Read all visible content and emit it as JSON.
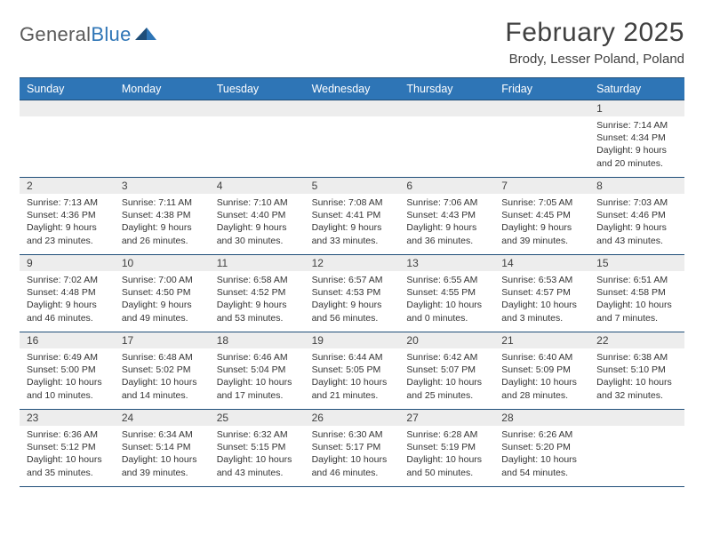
{
  "logo": {
    "word1": "General",
    "word2": "Blue"
  },
  "title": "February 2025",
  "subtitle": "Brody, Lesser Poland, Poland",
  "colors": {
    "header_bg": "#2e75b6",
    "header_border": "#1f4e79",
    "daynum_bg": "#ededed",
    "text": "#333333"
  },
  "day_names": [
    "Sunday",
    "Monday",
    "Tuesday",
    "Wednesday",
    "Thursday",
    "Friday",
    "Saturday"
  ],
  "weeks": [
    [
      {
        "n": "",
        "sunrise": "",
        "sunset": "",
        "daylight1": "",
        "daylight2": ""
      },
      {
        "n": "",
        "sunrise": "",
        "sunset": "",
        "daylight1": "",
        "daylight2": ""
      },
      {
        "n": "",
        "sunrise": "",
        "sunset": "",
        "daylight1": "",
        "daylight2": ""
      },
      {
        "n": "",
        "sunrise": "",
        "sunset": "",
        "daylight1": "",
        "daylight2": ""
      },
      {
        "n": "",
        "sunrise": "",
        "sunset": "",
        "daylight1": "",
        "daylight2": ""
      },
      {
        "n": "",
        "sunrise": "",
        "sunset": "",
        "daylight1": "",
        "daylight2": ""
      },
      {
        "n": "1",
        "sunrise": "Sunrise: 7:14 AM",
        "sunset": "Sunset: 4:34 PM",
        "daylight1": "Daylight: 9 hours",
        "daylight2": "and 20 minutes."
      }
    ],
    [
      {
        "n": "2",
        "sunrise": "Sunrise: 7:13 AM",
        "sunset": "Sunset: 4:36 PM",
        "daylight1": "Daylight: 9 hours",
        "daylight2": "and 23 minutes."
      },
      {
        "n": "3",
        "sunrise": "Sunrise: 7:11 AM",
        "sunset": "Sunset: 4:38 PM",
        "daylight1": "Daylight: 9 hours",
        "daylight2": "and 26 minutes."
      },
      {
        "n": "4",
        "sunrise": "Sunrise: 7:10 AM",
        "sunset": "Sunset: 4:40 PM",
        "daylight1": "Daylight: 9 hours",
        "daylight2": "and 30 minutes."
      },
      {
        "n": "5",
        "sunrise": "Sunrise: 7:08 AM",
        "sunset": "Sunset: 4:41 PM",
        "daylight1": "Daylight: 9 hours",
        "daylight2": "and 33 minutes."
      },
      {
        "n": "6",
        "sunrise": "Sunrise: 7:06 AM",
        "sunset": "Sunset: 4:43 PM",
        "daylight1": "Daylight: 9 hours",
        "daylight2": "and 36 minutes."
      },
      {
        "n": "7",
        "sunrise": "Sunrise: 7:05 AM",
        "sunset": "Sunset: 4:45 PM",
        "daylight1": "Daylight: 9 hours",
        "daylight2": "and 39 minutes."
      },
      {
        "n": "8",
        "sunrise": "Sunrise: 7:03 AM",
        "sunset": "Sunset: 4:46 PM",
        "daylight1": "Daylight: 9 hours",
        "daylight2": "and 43 minutes."
      }
    ],
    [
      {
        "n": "9",
        "sunrise": "Sunrise: 7:02 AM",
        "sunset": "Sunset: 4:48 PM",
        "daylight1": "Daylight: 9 hours",
        "daylight2": "and 46 minutes."
      },
      {
        "n": "10",
        "sunrise": "Sunrise: 7:00 AM",
        "sunset": "Sunset: 4:50 PM",
        "daylight1": "Daylight: 9 hours",
        "daylight2": "and 49 minutes."
      },
      {
        "n": "11",
        "sunrise": "Sunrise: 6:58 AM",
        "sunset": "Sunset: 4:52 PM",
        "daylight1": "Daylight: 9 hours",
        "daylight2": "and 53 minutes."
      },
      {
        "n": "12",
        "sunrise": "Sunrise: 6:57 AM",
        "sunset": "Sunset: 4:53 PM",
        "daylight1": "Daylight: 9 hours",
        "daylight2": "and 56 minutes."
      },
      {
        "n": "13",
        "sunrise": "Sunrise: 6:55 AM",
        "sunset": "Sunset: 4:55 PM",
        "daylight1": "Daylight: 10 hours",
        "daylight2": "and 0 minutes."
      },
      {
        "n": "14",
        "sunrise": "Sunrise: 6:53 AM",
        "sunset": "Sunset: 4:57 PM",
        "daylight1": "Daylight: 10 hours",
        "daylight2": "and 3 minutes."
      },
      {
        "n": "15",
        "sunrise": "Sunrise: 6:51 AM",
        "sunset": "Sunset: 4:58 PM",
        "daylight1": "Daylight: 10 hours",
        "daylight2": "and 7 minutes."
      }
    ],
    [
      {
        "n": "16",
        "sunrise": "Sunrise: 6:49 AM",
        "sunset": "Sunset: 5:00 PM",
        "daylight1": "Daylight: 10 hours",
        "daylight2": "and 10 minutes."
      },
      {
        "n": "17",
        "sunrise": "Sunrise: 6:48 AM",
        "sunset": "Sunset: 5:02 PM",
        "daylight1": "Daylight: 10 hours",
        "daylight2": "and 14 minutes."
      },
      {
        "n": "18",
        "sunrise": "Sunrise: 6:46 AM",
        "sunset": "Sunset: 5:04 PM",
        "daylight1": "Daylight: 10 hours",
        "daylight2": "and 17 minutes."
      },
      {
        "n": "19",
        "sunrise": "Sunrise: 6:44 AM",
        "sunset": "Sunset: 5:05 PM",
        "daylight1": "Daylight: 10 hours",
        "daylight2": "and 21 minutes."
      },
      {
        "n": "20",
        "sunrise": "Sunrise: 6:42 AM",
        "sunset": "Sunset: 5:07 PM",
        "daylight1": "Daylight: 10 hours",
        "daylight2": "and 25 minutes."
      },
      {
        "n": "21",
        "sunrise": "Sunrise: 6:40 AM",
        "sunset": "Sunset: 5:09 PM",
        "daylight1": "Daylight: 10 hours",
        "daylight2": "and 28 minutes."
      },
      {
        "n": "22",
        "sunrise": "Sunrise: 6:38 AM",
        "sunset": "Sunset: 5:10 PM",
        "daylight1": "Daylight: 10 hours",
        "daylight2": "and 32 minutes."
      }
    ],
    [
      {
        "n": "23",
        "sunrise": "Sunrise: 6:36 AM",
        "sunset": "Sunset: 5:12 PM",
        "daylight1": "Daylight: 10 hours",
        "daylight2": "and 35 minutes."
      },
      {
        "n": "24",
        "sunrise": "Sunrise: 6:34 AM",
        "sunset": "Sunset: 5:14 PM",
        "daylight1": "Daylight: 10 hours",
        "daylight2": "and 39 minutes."
      },
      {
        "n": "25",
        "sunrise": "Sunrise: 6:32 AM",
        "sunset": "Sunset: 5:15 PM",
        "daylight1": "Daylight: 10 hours",
        "daylight2": "and 43 minutes."
      },
      {
        "n": "26",
        "sunrise": "Sunrise: 6:30 AM",
        "sunset": "Sunset: 5:17 PM",
        "daylight1": "Daylight: 10 hours",
        "daylight2": "and 46 minutes."
      },
      {
        "n": "27",
        "sunrise": "Sunrise: 6:28 AM",
        "sunset": "Sunset: 5:19 PM",
        "daylight1": "Daylight: 10 hours",
        "daylight2": "and 50 minutes."
      },
      {
        "n": "28",
        "sunrise": "Sunrise: 6:26 AM",
        "sunset": "Sunset: 5:20 PM",
        "daylight1": "Daylight: 10 hours",
        "daylight2": "and 54 minutes."
      },
      {
        "n": "",
        "sunrise": "",
        "sunset": "",
        "daylight1": "",
        "daylight2": ""
      }
    ]
  ]
}
